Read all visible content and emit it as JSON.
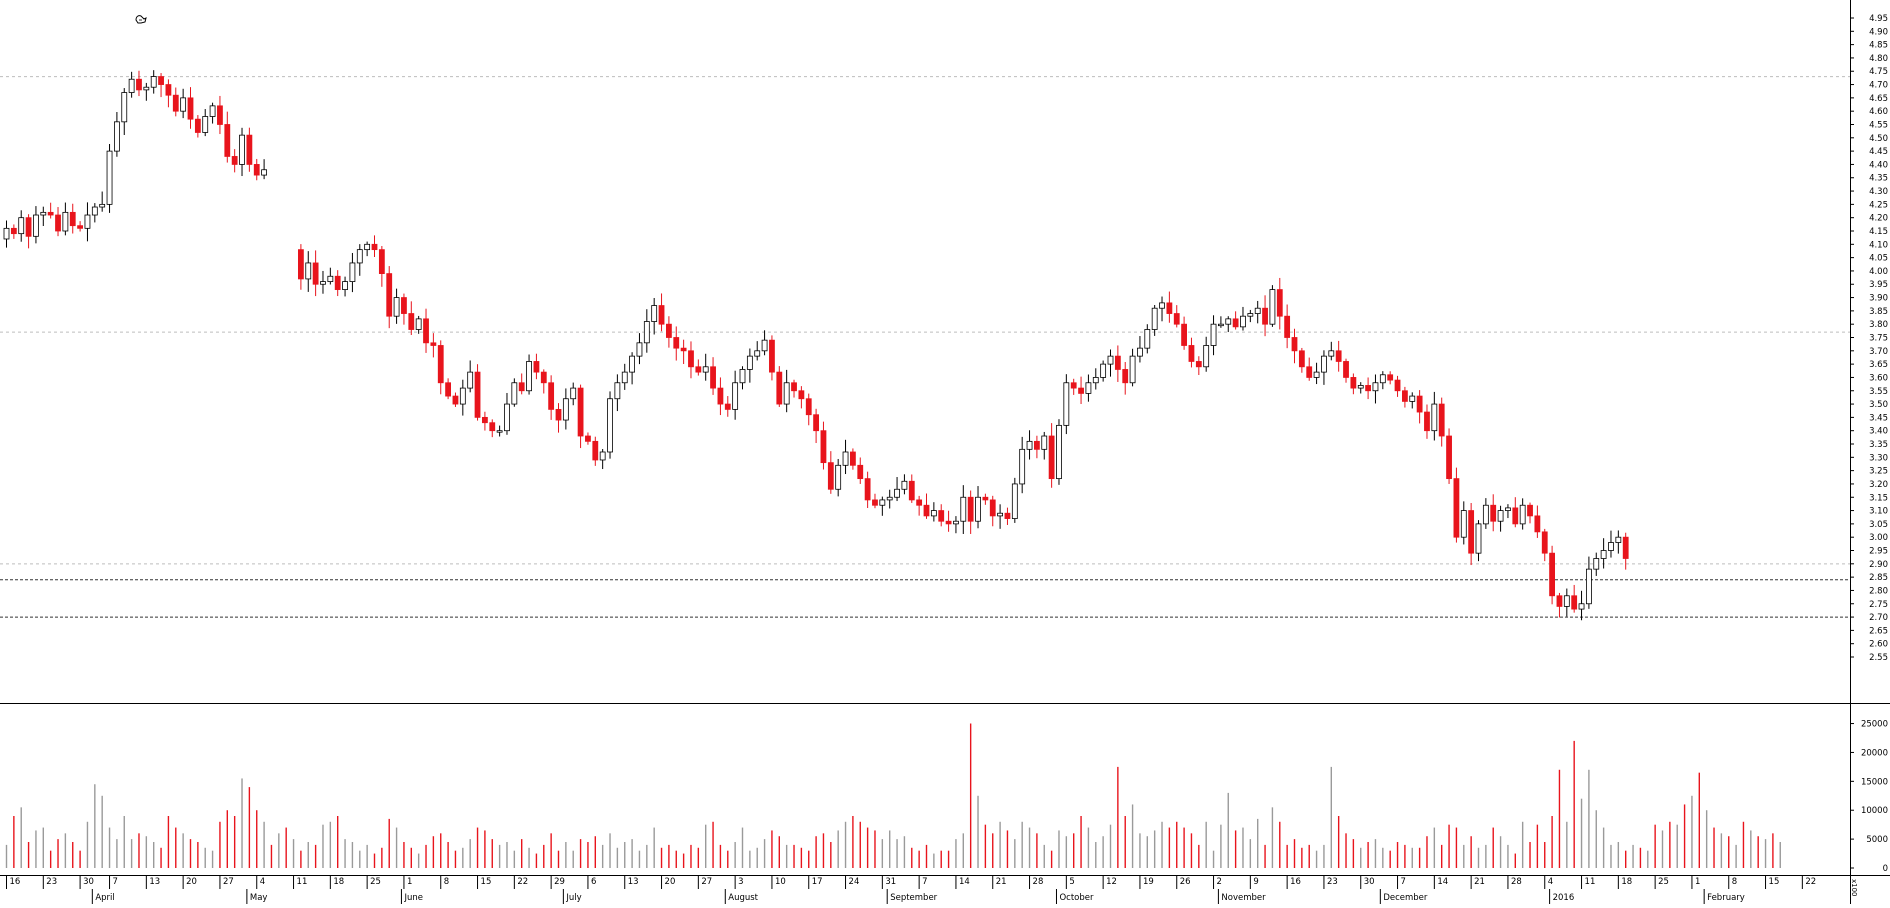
{
  "chart_data": [
    {
      "type": "candlestick",
      "title": "",
      "ylim": [
        2.52,
        4.98
      ],
      "y_ticks": [
        "2.55",
        "2.60",
        "2.65",
        "2.70",
        "2.75",
        "2.80",
        "2.85",
        "2.90",
        "2.95",
        "3.00",
        "3.05",
        "3.10",
        "3.15",
        "3.20",
        "3.25",
        "3.30",
        "3.35",
        "3.40",
        "3.45",
        "3.50",
        "3.55",
        "3.60",
        "3.65",
        "3.70",
        "3.75",
        "3.80",
        "3.85",
        "3.90",
        "3.95",
        "4.00",
        "4.05",
        "4.10",
        "4.15",
        "4.20",
        "4.25",
        "4.30",
        "4.35",
        "4.40",
        "4.45",
        "4.50",
        "4.55",
        "4.60",
        "4.65",
        "4.70",
        "4.75",
        "4.80",
        "4.85",
        "4.90",
        "4.95"
      ],
      "reference_lines": [
        {
          "value": 4.73,
          "style": "dotted-gray"
        },
        {
          "value": 3.77,
          "style": "dotted-gray"
        },
        {
          "value": 2.9,
          "style": "dotted-gray"
        },
        {
          "value": 2.84,
          "style": "dashed-black"
        },
        {
          "value": 2.7,
          "style": "dashed-black"
        }
      ],
      "up_color": "#ffffff",
      "down_color": "#e8141c",
      "grid": false,
      "annotation_icon": "hand-pointer-icon",
      "segments": [
        {
          "start": 0,
          "open": 4.12,
          "closes": [
            4.16,
            4.14,
            4.2,
            4.13,
            4.21,
            4.22,
            4.21,
            4.15,
            4.22,
            4.17,
            4.16,
            4.21,
            4.24,
            4.25,
            4.45,
            4.56,
            4.67,
            4.72,
            4.68,
            4.69,
            4.73,
            4.7,
            4.66,
            4.6,
            4.65,
            4.57,
            4.52,
            4.58,
            4.62,
            4.55,
            4.43,
            4.4,
            4.51,
            4.4,
            4.36,
            4.38
          ]
        },
        {
          "start": 40,
          "open": 4.08,
          "closes": [
            3.97,
            4.03,
            3.95,
            3.96,
            3.98,
            3.93,
            3.96,
            4.03,
            4.08,
            4.1,
            4.08,
            3.99,
            3.83,
            3.9,
            3.84,
            3.78,
            3.82,
            3.73,
            3.72,
            3.58,
            3.53,
            3.5,
            3.56,
            3.62,
            3.45,
            3.43,
            3.4,
            3.4,
            3.5,
            3.58,
            3.55,
            3.66,
            3.62,
            3.58,
            3.48,
            3.44,
            3.52,
            3.56,
            3.38,
            3.36,
            3.29,
            3.32,
            3.52,
            3.58,
            3.62,
            3.68,
            3.73,
            3.81,
            3.87,
            3.8,
            3.75,
            3.71,
            3.7,
            3.64,
            3.62,
            3.64,
            3.56,
            3.5,
            3.48,
            3.58,
            3.63,
            3.68,
            3.7,
            3.74,
            3.62,
            3.5,
            3.58,
            3.55,
            3.52,
            3.46,
            3.4,
            3.28,
            3.18,
            3.27,
            3.32,
            3.27,
            3.22,
            3.14,
            3.12,
            3.14,
            3.15,
            3.18,
            3.21,
            3.14,
            3.12,
            3.08,
            3.1,
            3.06,
            3.05,
            3.06,
            3.15,
            3.06,
            3.15,
            3.14,
            3.08,
            3.09,
            3.07,
            3.2,
            3.33,
            3.36,
            3.33,
            3.38,
            3.22,
            3.42,
            3.58,
            3.56,
            3.54,
            3.58,
            3.6,
            3.65,
            3.68,
            3.63,
            3.58,
            3.68,
            3.71,
            3.78,
            3.86,
            3.88,
            3.84,
            3.8,
            3.72,
            3.66,
            3.64,
            3.72,
            3.8,
            3.8,
            3.82,
            3.79,
            3.83,
            3.84,
            3.86,
            3.8,
            3.93,
            3.83,
            3.75,
            3.7,
            3.64,
            3.6,
            3.62,
            3.68,
            3.7,
            3.66,
            3.6,
            3.56,
            3.57,
            3.55,
            3.58,
            3.61,
            3.59,
            3.55,
            3.51,
            3.53,
            3.47,
            3.4,
            3.5,
            3.38,
            3.22,
            3.0,
            3.1,
            2.94,
            3.05,
            3.12,
            3.06,
            3.1,
            3.11,
            3.05,
            3.12,
            3.08,
            3.02,
            2.94,
            2.78,
            2.74,
            2.78,
            2.73,
            2.75,
            2.88,
            2.92,
            2.95,
            2.98,
            3.0,
            2.92
          ]
        }
      ],
      "x_ticks": [
        {
          "label": "16",
          "bar": 0
        },
        {
          "label": "23",
          "bar": 5
        },
        {
          "label": "30",
          "bar": 10
        },
        {
          "label": "7",
          "bar": 14
        },
        {
          "label": "13",
          "bar": 19
        },
        {
          "label": "20",
          "bar": 24
        },
        {
          "label": "27",
          "bar": 29
        },
        {
          "label": "4",
          "bar": 34
        },
        {
          "label": "11",
          "bar": 39
        },
        {
          "label": "18",
          "bar": 44
        },
        {
          "label": "25",
          "bar": 49
        },
        {
          "label": "1",
          "bar": 54
        },
        {
          "label": "8",
          "bar": 59
        },
        {
          "label": "15",
          "bar": 64
        },
        {
          "label": "22",
          "bar": 69
        },
        {
          "label": "29",
          "bar": 74
        },
        {
          "label": "6",
          "bar": 79
        },
        {
          "label": "13",
          "bar": 84
        },
        {
          "label": "20",
          "bar": 89
        },
        {
          "label": "27",
          "bar": 94
        },
        {
          "label": "3",
          "bar": 99
        },
        {
          "label": "10",
          "bar": 104
        },
        {
          "label": "17",
          "bar": 109
        },
        {
          "label": "24",
          "bar": 114
        },
        {
          "label": "31",
          "bar": 119
        },
        {
          "label": "7",
          "bar": 124
        },
        {
          "label": "14",
          "bar": 129
        },
        {
          "label": "21",
          "bar": 134
        },
        {
          "label": "28",
          "bar": 139
        },
        {
          "label": "5",
          "bar": 144
        },
        {
          "label": "12",
          "bar": 149
        },
        {
          "label": "19",
          "bar": 154
        },
        {
          "label": "26",
          "bar": 159
        },
        {
          "label": "2",
          "bar": 164
        },
        {
          "label": "9",
          "bar": 169
        },
        {
          "label": "16",
          "bar": 174
        },
        {
          "label": "23",
          "bar": 179
        },
        {
          "label": "30",
          "bar": 184
        },
        {
          "label": "7",
          "bar": 189
        },
        {
          "label": "14",
          "bar": 194
        },
        {
          "label": "21",
          "bar": 199
        },
        {
          "label": "28",
          "bar": 204
        },
        {
          "label": "4",
          "bar": 209
        },
        {
          "label": "11",
          "bar": 214
        },
        {
          "label": "18",
          "bar": 219
        },
        {
          "label": "25",
          "bar": 224
        },
        {
          "label": "1",
          "bar": 229
        },
        {
          "label": "8",
          "bar": 234
        },
        {
          "label": "15",
          "bar": 239
        },
        {
          "label": "22",
          "bar": 244
        }
      ],
      "x_month_labels": [
        {
          "label": "April",
          "bar": 12
        },
        {
          "label": "May",
          "bar": 33
        },
        {
          "label": "June",
          "bar": 54
        },
        {
          "label": "July",
          "bar": 76
        },
        {
          "label": "August",
          "bar": 98
        },
        {
          "label": "September",
          "bar": 120
        },
        {
          "label": "October",
          "bar": 143
        },
        {
          "label": "November",
          "bar": 165
        },
        {
          "label": "December",
          "bar": 187
        },
        {
          "label": "2016",
          "bar": 210
        },
        {
          "label": "February",
          "bar": 231
        }
      ]
    },
    {
      "type": "bar",
      "series_name": "volume",
      "ylim": [
        0,
        27000
      ],
      "y_ticks": [
        "0",
        "5000",
        "10000",
        "15000",
        "20000",
        "25000"
      ],
      "axis_unit": "x100",
      "values": [
        4000,
        9000,
        10500,
        4500,
        6500,
        7000,
        3000,
        5000,
        6000,
        4500,
        3000,
        8000,
        14500,
        12500,
        7000,
        5000,
        9000,
        5000,
        6000,
        5500,
        4500,
        3500,
        9000,
        7000,
        6000,
        5000,
        4500,
        3500,
        3000,
        8000,
        10000,
        9000,
        15500,
        14000,
        10000,
        8000,
        4000,
        6000,
        7000,
        5000,
        3000,
        4500,
        4000,
        7500,
        8000,
        9000,
        5000,
        4500,
        3000,
        4000,
        2500,
        3500,
        8500,
        7000,
        4500,
        3500,
        2500,
        4000,
        5500,
        6000,
        4500,
        3000,
        3500,
        5000,
        7000,
        6500,
        5000,
        4000,
        4500,
        3000,
        5000,
        3500,
        2500,
        4000,
        6000,
        3000,
        4500,
        3000,
        5000,
        4500,
        5500,
        4000,
        6000,
        3500,
        4500,
        5000,
        3000,
        4000,
        7000,
        3500,
        4000,
        3000,
        2500,
        4000,
        3500,
        7500,
        8000,
        4000,
        3000,
        4500,
        7000,
        3000,
        3500,
        5000,
        6500,
        5500,
        4000,
        4000,
        3500,
        3000,
        5500,
        6000,
        4500,
        6500,
        8000,
        9000,
        8000,
        7000,
        6500,
        5000,
        6500,
        5000,
        5500,
        3500,
        3000,
        4000,
        2500,
        3000,
        3000,
        5000,
        6000,
        25000,
        12500,
        7500,
        6000,
        8000,
        6500,
        5000,
        8000,
        7000,
        6000,
        4000,
        3000,
        6500,
        5500,
        6000,
        9000,
        7000,
        4500,
        5500,
        7500,
        17500,
        9000,
        11000,
        6000,
        5500,
        6500,
        8000,
        7000,
        8000,
        7000,
        6000,
        4000,
        8000,
        3000,
        7500,
        13000,
        6500,
        7000,
        5000,
        8500,
        4000,
        10500,
        8000,
        4000,
        5000,
        3500,
        4000,
        3000,
        4000,
        17500,
        9000,
        6000,
        5000,
        3500,
        4500,
        5000,
        3500,
        3000,
        4500,
        4000,
        3500,
        3500,
        5500,
        7000,
        4000,
        7500,
        7000,
        4000,
        5500,
        3500,
        4000,
        7000,
        5500,
        4000,
        2500,
        8000,
        4500,
        7500,
        4500,
        9000,
        17000,
        8000,
        22000,
        12000,
        17000,
        10000,
        7000,
        4000,
        4500,
        3000,
        4000,
        3500,
        3000,
        7500,
        6500,
        8000,
        7500,
        11000,
        12500,
        16500,
        10000,
        7000,
        6000,
        5500,
        4000,
        8000,
        6500,
        5500,
        5000,
        6000,
        4500
      ]
    }
  ]
}
